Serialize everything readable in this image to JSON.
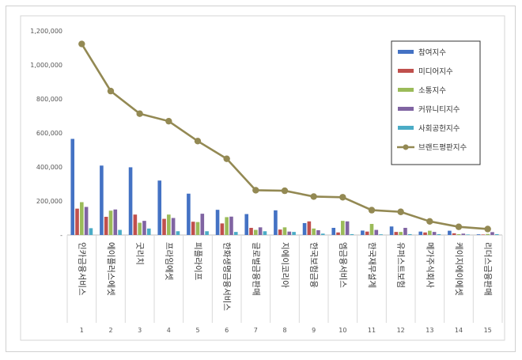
{
  "chart_data": {
    "type": "bar",
    "title": "",
    "xlabel": "",
    "ylabel": "",
    "ylim": [
      0,
      1200000
    ],
    "ytick_step": 200000,
    "y_tick_labels": [
      "-",
      "200,000",
      "400,000",
      "600,000",
      "800,000",
      "1,000,000",
      "1,200,000"
    ],
    "grid": false,
    "legend_position": "top-right",
    "categories": [
      "인카금융서비스",
      "에이플러스에셋",
      "굿리치",
      "프라임에셋",
      "피플라이프",
      "한화생명금융서비스",
      "글로벌금융판매",
      "지에이코리아",
      "한국보험금융",
      "엠금융서비스",
      "한국재무설계",
      "유퍼스트보험",
      "메가주식회사",
      "케이지에이에셋",
      "리더스금융판매"
    ],
    "ranks": [
      "1",
      "2",
      "3",
      "4",
      "5",
      "6",
      "7",
      "8",
      "9",
      "10",
      "11",
      "12",
      "13",
      "14",
      "15"
    ],
    "series": [
      {
        "name": "참여지수",
        "kind": "bar",
        "color": "#4472c4",
        "values": [
          565000,
          408000,
          398000,
          320000,
          243000,
          148000,
          123000,
          145000,
          70000,
          42000,
          26000,
          50000,
          20000,
          25000,
          4000
        ]
      },
      {
        "name": "미디어지수",
        "kind": "bar",
        "color": "#c0504d",
        "values": [
          155000,
          107000,
          120000,
          95000,
          78000,
          68000,
          42000,
          32000,
          80000,
          15000,
          20000,
          18000,
          15000,
          10000,
          3000
        ]
      },
      {
        "name": "소통지수",
        "kind": "bar",
        "color": "#9bbb59",
        "values": [
          193000,
          143000,
          72000,
          120000,
          76000,
          105000,
          30000,
          45000,
          38000,
          83000,
          65000,
          18000,
          25000,
          5000,
          6000
        ]
      },
      {
        "name": "커뮤니티지수",
        "kind": "bar",
        "color": "#8064a2",
        "values": [
          165000,
          150000,
          83000,
          100000,
          125000,
          108000,
          45000,
          20000,
          28000,
          80000,
          30000,
          42000,
          18000,
          8000,
          17000
        ]
      },
      {
        "name": "사회공헌지수",
        "kind": "bar",
        "color": "#4bacc6",
        "values": [
          40000,
          30000,
          38000,
          22000,
          22000,
          18000,
          22000,
          18000,
          8000,
          5000,
          4000,
          5000,
          5000,
          3000,
          5000
        ]
      },
      {
        "name": "브랜드평판지수",
        "kind": "line",
        "color": "#938953",
        "values": [
          1123000,
          846000,
          713000,
          669000,
          552000,
          448000,
          263000,
          260000,
          226000,
          222000,
          146000,
          136000,
          80000,
          48000,
          35000
        ]
      }
    ]
  }
}
